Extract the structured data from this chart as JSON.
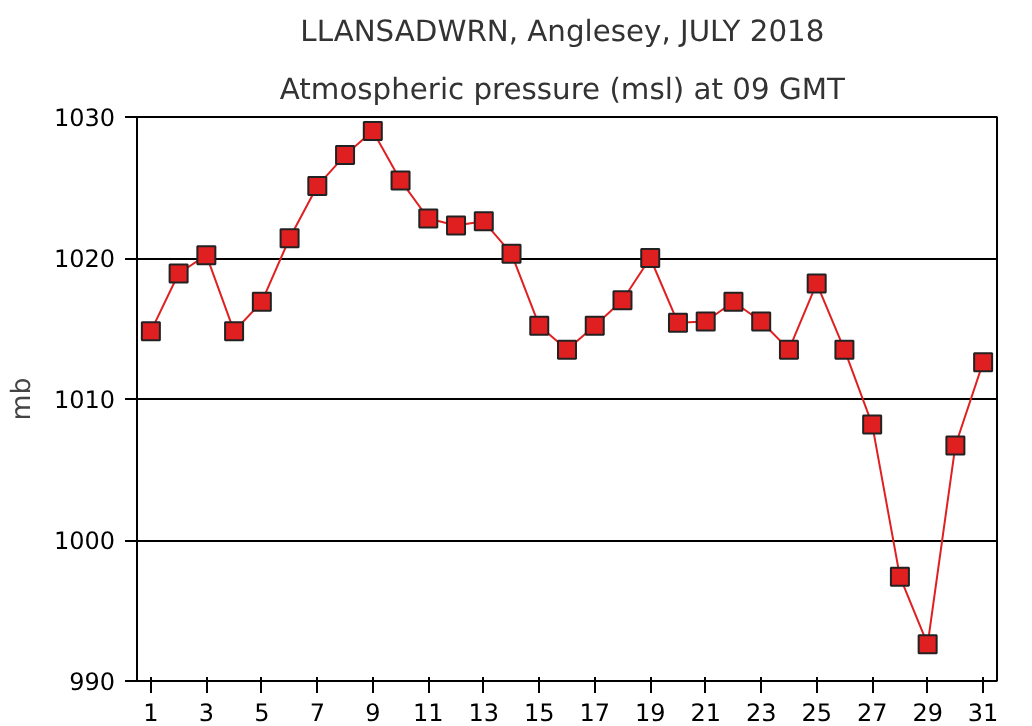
{
  "chart_data": {
    "type": "line",
    "title": "LLANSADWRN, Anglesey,  JULY 2018",
    "subtitle": "Atmospheric pressure  (msl) at 09 GMT",
    "ylabel": "mb",
    "x": [
      1,
      2,
      3,
      4,
      5,
      6,
      7,
      8,
      9,
      10,
      11,
      12,
      13,
      14,
      15,
      16,
      17,
      18,
      19,
      20,
      21,
      22,
      23,
      24,
      25,
      26,
      27,
      28,
      29,
      30,
      31
    ],
    "series": [
      {
        "color": "#e02020",
        "values": [
          1014.8,
          1018.9,
          1020.2,
          1014.8,
          1016.9,
          1021.4,
          1025.1,
          1027.3,
          1029,
          1025.5,
          1022.8,
          1022.3,
          1022.6,
          1020.3,
          1015.2,
          1013.5,
          1015.2,
          1017,
          1020,
          1015.4,
          1015.5,
          1016.9,
          1015.5,
          1013.5,
          1018.2,
          1013.5,
          1008.2,
          997.4,
          992.6,
          1006.7,
          1012.6
        ]
      }
    ],
    "xlim": [
      0.5,
      31.5
    ],
    "xticks": [
      1,
      3,
      5,
      7,
      9,
      11,
      13,
      15,
      17,
      19,
      21,
      23,
      25,
      27,
      29,
      31
    ],
    "ylim": [
      990,
      1030
    ],
    "yticks": [
      990,
      1000,
      1010,
      1020,
      1030
    ],
    "grid": "y",
    "marker": "square",
    "line_style": "solid"
  }
}
